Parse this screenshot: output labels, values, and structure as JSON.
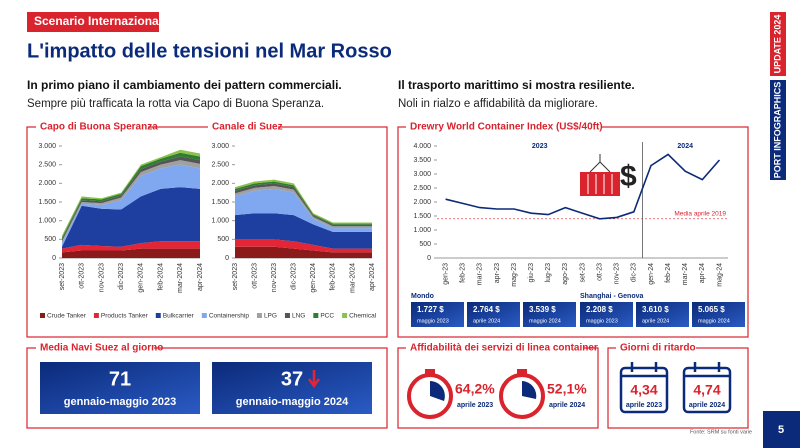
{
  "header": {
    "tag": "Scenario Internazionale",
    "title": "L'impatto delle tensioni nel Mar Rosso"
  },
  "side": {
    "update": "UPDATE 2024",
    "series": "PORT INFOGRAPHICS"
  },
  "left_intro": {
    "heading": "In primo piano il cambiamento dei pattern commerciali.",
    "text": "Sempre più trafficata la rotta via Capo di Buona Speranza."
  },
  "right_intro": {
    "heading": "Il trasporto marittimo si mostra resiliente.",
    "text": "Noli in rialzo e affidabilità da migliorare."
  },
  "chart_data": [
    {
      "type": "area",
      "title": "Capo di Buona Speranza",
      "categories": [
        "set-2023",
        "ott-2023",
        "nov-2023",
        "dic-2023",
        "gen-2024",
        "feb-2024",
        "mar-2024",
        "apr-2024"
      ],
      "ylim": [
        0,
        3000
      ],
      "yticks": [
        0,
        500,
        {
          "value": 1000,
          "label": "1.000"
        },
        {
          "value": 1500,
          "label": "1.500"
        },
        {
          "value": 2000,
          "label": "2.000"
        },
        {
          "value": 2500,
          "label": "2.500"
        },
        {
          "value": 3000,
          "label": "3.000"
        }
      ],
      "series": [
        {
          "name": "Crude Tanker",
          "color": "#8b1a1a",
          "values": [
            150,
            200,
            200,
            200,
            250,
            250,
            250,
            250
          ]
        },
        {
          "name": "Products Tanker",
          "color": "#e32636",
          "values": [
            100,
            150,
            120,
            100,
            150,
            200,
            200,
            200
          ]
        },
        {
          "name": "Bulkcarrier",
          "color": "#1f3fa0",
          "values": [
            50,
            1050,
            1000,
            1000,
            1250,
            1400,
            1450,
            1400
          ]
        },
        {
          "name": "Containership",
          "color": "#7fa8f0",
          "values": [
            100,
            50,
            100,
            250,
            550,
            550,
            600,
            550
          ]
        },
        {
          "name": "LPG",
          "color": "#a0a0a0",
          "values": [
            50,
            50,
            50,
            70,
            100,
            100,
            120,
            120
          ]
        },
        {
          "name": "LNG",
          "color": "#555555",
          "values": [
            50,
            50,
            50,
            50,
            80,
            80,
            100,
            100
          ]
        },
        {
          "name": "PCC",
          "color": "#2e7d32",
          "values": [
            50,
            50,
            50,
            50,
            80,
            80,
            100,
            100
          ]
        },
        {
          "name": "Chemical",
          "color": "#8bc34a",
          "values": [
            50,
            50,
            30,
            30,
            40,
            40,
            80,
            80
          ]
        }
      ]
    },
    {
      "type": "area",
      "title": "Canale di Suez",
      "categories": [
        "set-2023",
        "ott-2023",
        "nov-2023",
        "dic-2023",
        "gen-2024",
        "feb-2024",
        "mar-2024",
        "apr-2024"
      ],
      "ylim": [
        0,
        3000
      ],
      "yticks": [
        0,
        500,
        {
          "value": 1000,
          "label": "1.000"
        },
        {
          "value": 1500,
          "label": "1.500"
        },
        {
          "value": 2000,
          "label": "2.000"
        },
        {
          "value": 2500,
          "label": "2.500"
        },
        {
          "value": 3000,
          "label": "3.000"
        }
      ],
      "series": [
        {
          "name": "Crude Tanker",
          "color": "#8b1a1a",
          "values": [
            300,
            300,
            300,
            250,
            200,
            150,
            150,
            150
          ]
        },
        {
          "name": "Products Tanker",
          "color": "#e32636",
          "values": [
            200,
            200,
            200,
            200,
            150,
            100,
            100,
            100
          ]
        },
        {
          "name": "Bulkcarrier",
          "color": "#1f3fa0",
          "values": [
            650,
            700,
            700,
            700,
            550,
            450,
            450,
            450
          ]
        },
        {
          "name": "Containership",
          "color": "#7fa8f0",
          "values": [
            500,
            600,
            650,
            600,
            150,
            100,
            100,
            100
          ]
        },
        {
          "name": "LPG",
          "color": "#a0a0a0",
          "values": [
            80,
            80,
            80,
            80,
            50,
            50,
            50,
            50
          ]
        },
        {
          "name": "LNG",
          "color": "#555555",
          "values": [
            70,
            70,
            70,
            70,
            40,
            40,
            40,
            40
          ]
        },
        {
          "name": "PCC",
          "color": "#2e7d32",
          "values": [
            50,
            50,
            50,
            50,
            30,
            30,
            30,
            30
          ]
        },
        {
          "name": "Chemical",
          "color": "#8bc34a",
          "values": [
            50,
            50,
            50,
            50,
            30,
            30,
            30,
            30
          ]
        }
      ]
    },
    {
      "type": "line",
      "title": "Drewry World Container Index (US$/40ft)",
      "categories": [
        "gen-23",
        "feb-23",
        "mar-23",
        "apr-23",
        "mag-23",
        "giu-23",
        "lug-23",
        "ago-23",
        "set-23",
        "ott-23",
        "nov-23",
        "dic-23",
        "gen-24",
        "feb-24",
        "mar-24",
        "apr-24",
        "mag-24"
      ],
      "ylim": [
        0,
        4000
      ],
      "yticks": [
        0,
        500,
        {
          "value": 1000,
          "label": "1.000"
        },
        {
          "value": 1500,
          "label": "1.500"
        },
        {
          "value": 2000,
          "label": "2.000"
        },
        {
          "value": 2500,
          "label": "2.500"
        },
        {
          "value": 3000,
          "label": "3.000"
        },
        {
          "value": 3500,
          "label": "3.500"
        },
        {
          "value": 4000,
          "label": "4.000"
        }
      ],
      "series": [
        {
          "name": "WCI",
          "color": "#0b2a7a",
          "values": [
            2100,
            1950,
            1800,
            1750,
            1750,
            1600,
            1550,
            1800,
            1600,
            1400,
            1450,
            1650,
            3300,
            3700,
            3100,
            2800,
            3500
          ]
        }
      ],
      "reference_line": {
        "value": 1400,
        "label": "Media aprile 2019",
        "color": "#d9232d"
      },
      "year_labels": [
        "2023",
        "2024"
      ]
    }
  ],
  "indices": [
    {
      "region": "Mondo",
      "items": [
        {
          "value": "1.727 $",
          "period": "maggio 2023"
        },
        {
          "value": "2.764 $",
          "period": "aprile 2024"
        },
        {
          "value": "3.539 $",
          "period": "maggio 2024"
        }
      ]
    },
    {
      "region": "Shanghai - Genova",
      "items": [
        {
          "value": "2.208 $",
          "period": "maggio 2023"
        },
        {
          "value": "3.610 $",
          "period": "aprile 2024"
        },
        {
          "value": "5.065 $",
          "period": "maggio 2024"
        }
      ]
    }
  ],
  "suez_ships": {
    "title": "Media Navi Suez al giorno",
    "items": [
      {
        "value": "71",
        "period": "gennaio-maggio 2023"
      },
      {
        "value": "37",
        "period": "gennaio-maggio 2024"
      }
    ]
  },
  "reliability": {
    "title": "Affidabilità dei servizi di linea container",
    "items": [
      {
        "value": "64,2%",
        "period": "aprile 2023"
      },
      {
        "value": "52,1%",
        "period": "aprile 2024"
      }
    ]
  },
  "delay": {
    "title": "Giorni di ritardo",
    "items": [
      {
        "value": "4,34",
        "period": "aprile 2023"
      },
      {
        "value": "4,74",
        "period": "aprile 2024"
      }
    ]
  },
  "footer": {
    "source": "Fonte: SRM su fonti varie",
    "page": "5"
  }
}
